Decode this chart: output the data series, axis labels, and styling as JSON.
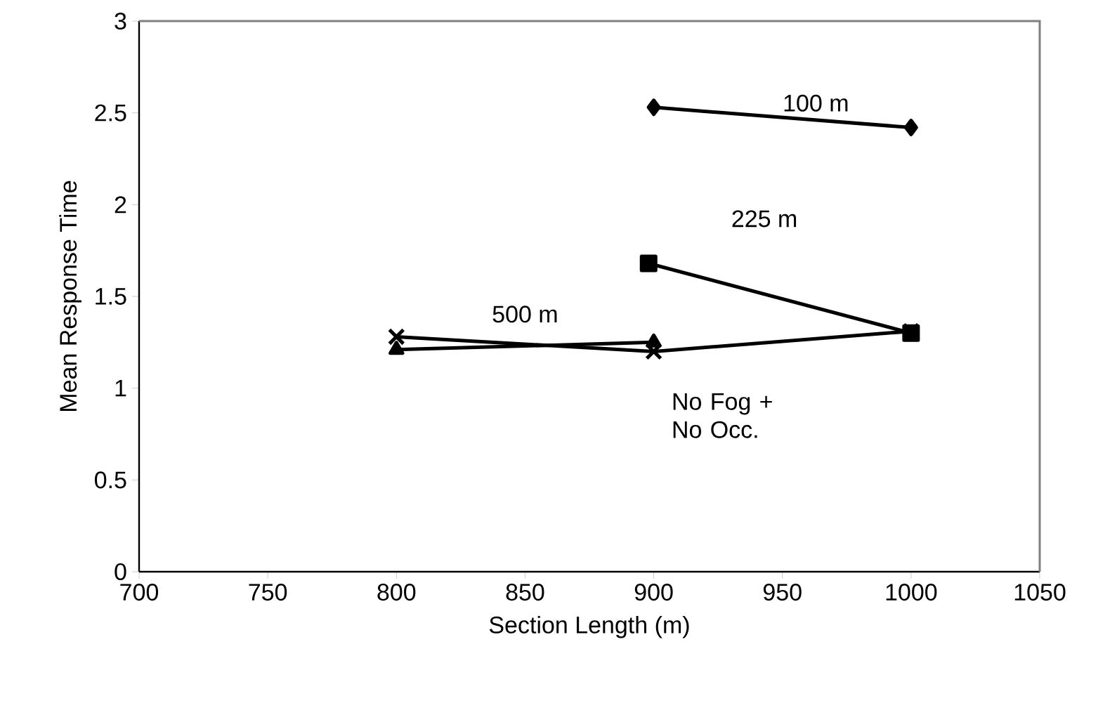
{
  "chart_data": {
    "type": "line",
    "xlabel": "Section Length (m)",
    "ylabel": "Mean Response Time",
    "xlim": [
      700,
      1050
    ],
    "xticks": [
      700,
      750,
      800,
      850,
      900,
      950,
      1000,
      1050
    ],
    "ylim": [
      0,
      3
    ],
    "yticks": [
      0,
      0.5,
      1,
      1.5,
      2,
      2.5,
      3
    ],
    "grid": false,
    "line_style": "solid",
    "series": [
      {
        "name": "100 m",
        "color": "#000000",
        "marker": "diamond",
        "x": [
          900,
          1000
        ],
        "values": [
          2.53,
          2.42
        ]
      },
      {
        "name": "225 m",
        "color": "#000000",
        "marker": "square",
        "x": [
          898,
          1000
        ],
        "values": [
          1.68,
          1.3
        ]
      },
      {
        "name": "500 m",
        "color": "#000000",
        "marker": "triangle",
        "x": [
          800,
          900
        ],
        "values": [
          1.21,
          1.25
        ]
      },
      {
        "name": "No Fog + No Occ.",
        "color": "#000000",
        "marker": "cross",
        "x": [
          800,
          900,
          1000
        ],
        "values": [
          1.28,
          1.2,
          1.31
        ]
      }
    ]
  }
}
